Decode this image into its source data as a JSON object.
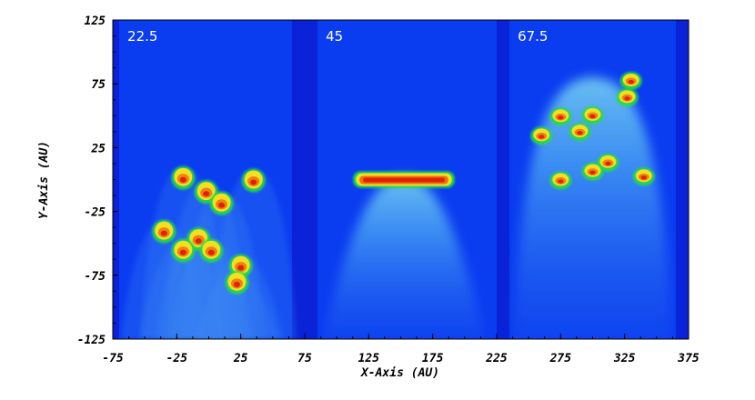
{
  "chart_data": {
    "type": "heatmap",
    "title": "",
    "xlabel": "X-Axis (AU)",
    "ylabel": "Y-Axis (AU)",
    "xlim": [
      -75,
      375
    ],
    "ylim": [
      -125,
      125
    ],
    "xticks": [
      -75,
      -25,
      25,
      75,
      125,
      175,
      225,
      275,
      325,
      375
    ],
    "yticks": [
      -125,
      -75,
      -25,
      25,
      75,
      125
    ],
    "panels": [
      {
        "label": "22.5",
        "x_range": [
          -70,
          65
        ],
        "description_clumps": [
          {
            "x": -20,
            "y": 2
          },
          {
            "x": -2,
            "y": -9
          },
          {
            "x": 10,
            "y": -18
          },
          {
            "x": 35,
            "y": 0
          },
          {
            "x": -35,
            "y": -40
          },
          {
            "x": -8,
            "y": -46
          },
          {
            "x": -20,
            "y": -55
          },
          {
            "x": 2,
            "y": -55
          },
          {
            "x": 25,
            "y": -67
          },
          {
            "x": 22,
            "y": -80
          }
        ]
      },
      {
        "label": "45",
        "x_range": [
          85,
          225
        ],
        "front_y": 0,
        "front_x_range": [
          115,
          190
        ]
      },
      {
        "label": "67.5",
        "x_range": [
          235,
          365
        ],
        "description_clumps": [
          {
            "x": 275,
            "y": 50
          },
          {
            "x": 290,
            "y": 38
          },
          {
            "x": 300,
            "y": 51
          },
          {
            "x": 327,
            "y": 65
          },
          {
            "x": 330,
            "y": 78
          },
          {
            "x": 260,
            "y": 35
          },
          {
            "x": 312,
            "y": 14
          },
          {
            "x": 300,
            "y": 7
          },
          {
            "x": 275,
            "y": 0
          },
          {
            "x": 340,
            "y": 3
          }
        ]
      }
    ],
    "colors": {
      "background": "#0a3cf0",
      "gap": "#0a22d8",
      "plume_low": "#3f8ef5",
      "plume_mid": "#63d3f0",
      "clump_edge": "#22dd44",
      "clump_mid": "#f0e020",
      "clump_core": "#e02000"
    }
  }
}
